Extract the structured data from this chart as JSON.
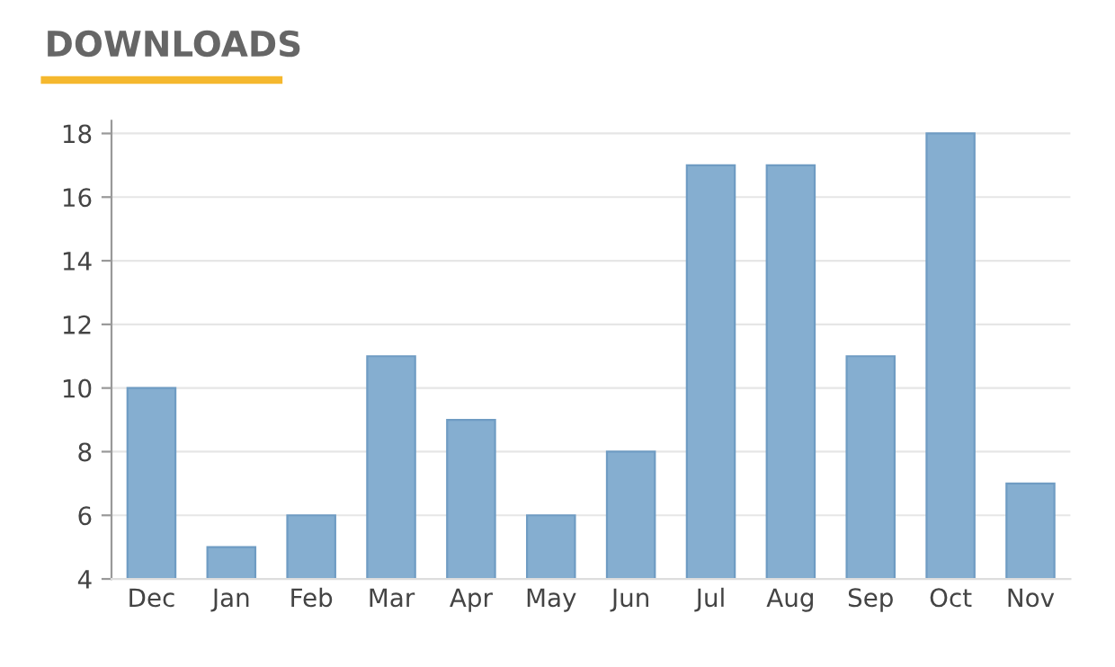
{
  "chart_data": {
    "type": "bar",
    "title": "DOWNLOADS",
    "categories": [
      "Dec",
      "Jan",
      "Feb",
      "Mar",
      "Apr",
      "May",
      "Jun",
      "Jul",
      "Aug",
      "Sep",
      "Oct",
      "Nov"
    ],
    "values": [
      10,
      5,
      6,
      11,
      9,
      6,
      8,
      17,
      17,
      11,
      18,
      7
    ],
    "color": "#85aed0",
    "ylim": [
      4,
      18.4
    ],
    "yticks": [
      4,
      6,
      8,
      10,
      12,
      14,
      16,
      18
    ],
    "grid": "y",
    "legend": false
  }
}
